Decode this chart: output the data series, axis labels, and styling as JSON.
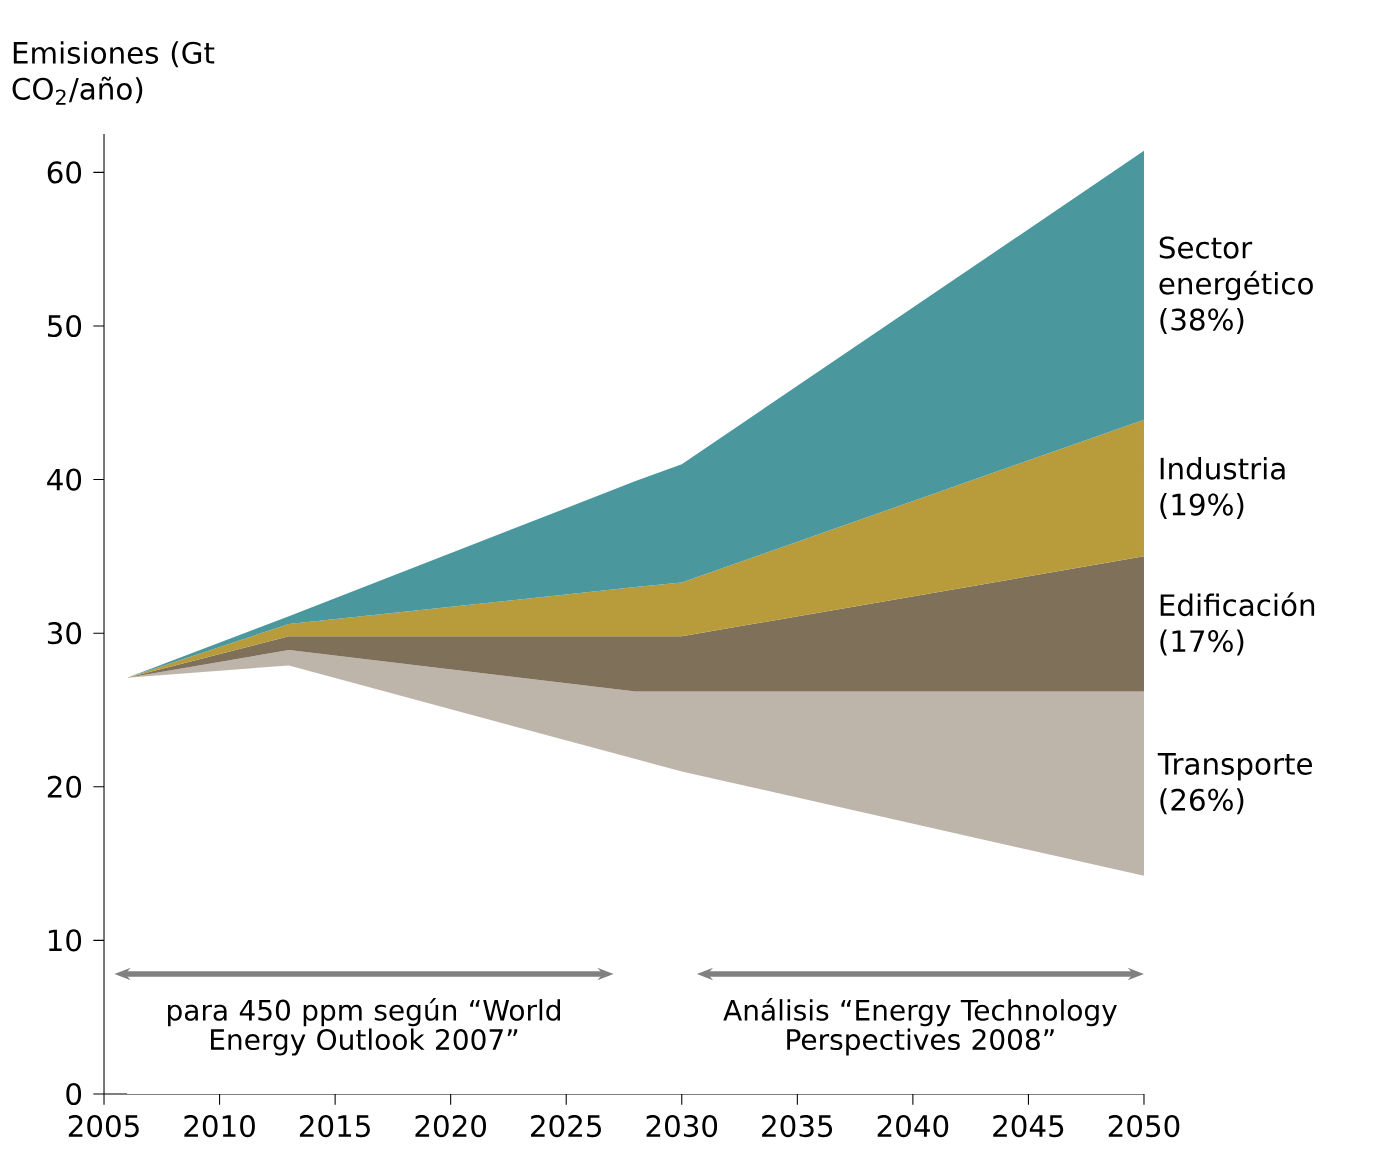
{
  "chart_data": {
    "type": "area",
    "stacked": true,
    "ylabel": "Emisiones (Gt CO$_{2}$/año)",
    "x": [
      2006,
      2013,
      2028,
      2030,
      2050
    ],
    "series": [
      {
        "color": "#ffffff",
        "values": [
          27.1,
          27.9,
          21.8,
          21.0,
          14.2
        ]
      },
      {
        "name": "Transporte (26%)",
        "color": "#bdb5aa",
        "values": [
          0,
          1.0,
          4.4,
          5.2,
          12.0
        ]
      },
      {
        "name": "Edificación (17%)",
        "color": "#7f705a",
        "values": [
          0,
          0.9,
          3.6,
          3.6,
          8.8
        ]
      },
      {
        "name": "Industria (19%)",
        "color": "#b89b3a",
        "values": [
          0,
          0.8,
          3.2,
          3.5,
          8.9
        ]
      },
      {
        "name": "Sector energético (38%)",
        "color": "#4a979e",
        "values": [
          0,
          0.5,
          6.9,
          7.7,
          17.5
        ]
      }
    ],
    "xlim": [
      2005,
      2050
    ],
    "xticks": [
      2005,
      2010,
      2015,
      2020,
      2025,
      2030,
      2035,
      2040,
      2045,
      2050
    ],
    "ylim": [
      0,
      62.5
    ],
    "yticks": [
      0,
      10,
      20,
      30,
      40,
      50,
      60
    ],
    "grid": false,
    "legend": false,
    "annotations": [
      "para 450 ppm según “World Energy Outlook 2007”",
      "Análisis “Energy Technology Perspectives 2008”"
    ]
  }
}
